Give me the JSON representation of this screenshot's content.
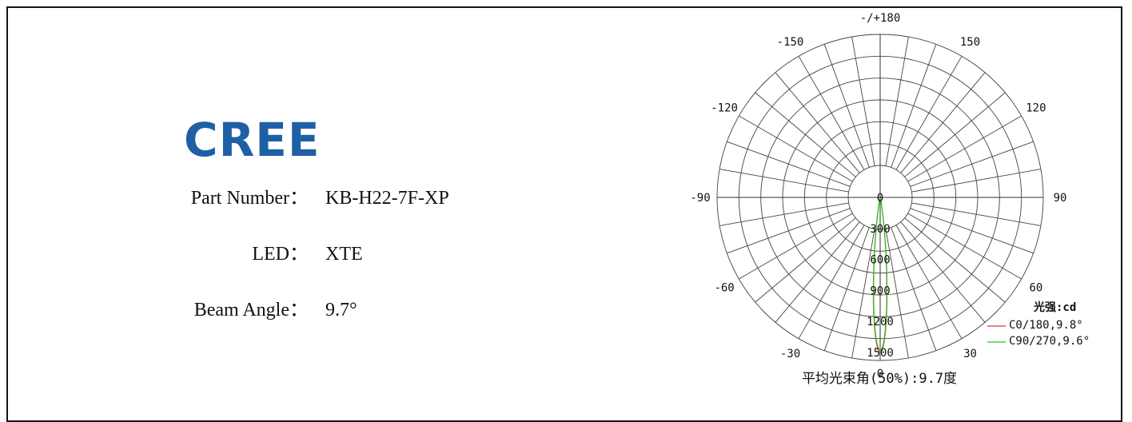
{
  "brand": {
    "name": "CREE",
    "color": "#1f5fa6"
  },
  "specs": [
    {
      "label": "Part Number：",
      "value": "KB-H22-7F-XP"
    },
    {
      "label": "LED：",
      "value": "XTE"
    },
    {
      "label": "Beam Angle：",
      "value": "9.7°"
    }
  ],
  "chart_data": {
    "type": "polar",
    "angle_labels": [
      {
        "text": "-/+180",
        "angle": 180
      },
      {
        "text": "-150",
        "angle": -150
      },
      {
        "text": "150",
        "angle": 150
      },
      {
        "text": "-120",
        "angle": -120
      },
      {
        "text": "120",
        "angle": 120
      },
      {
        "text": "-90",
        "angle": -90
      },
      {
        "text": "90",
        "angle": 90
      },
      {
        "text": "-60",
        "angle": -60
      },
      {
        "text": "60",
        "angle": 60
      },
      {
        "text": "-30",
        "angle": -30
      },
      {
        "text": "30",
        "angle": 30
      },
      {
        "text": "0",
        "angle": 0
      }
    ],
    "radial_ticks": [
      "0",
      "300",
      "600",
      "900",
      "1200",
      "1500"
    ],
    "rmax": 1500,
    "unit_label": "光强:cd",
    "footer": "平均光束角(50%):9.7度",
    "grid": true,
    "series": [
      {
        "name": "C0/180,9.8°",
        "color": "#e03030",
        "peak": 1500,
        "half_angle": 4.9
      },
      {
        "name": "C90/270,9.6°",
        "color": "#22cc22",
        "peak": 1480,
        "half_angle": 4.8
      }
    ]
  }
}
